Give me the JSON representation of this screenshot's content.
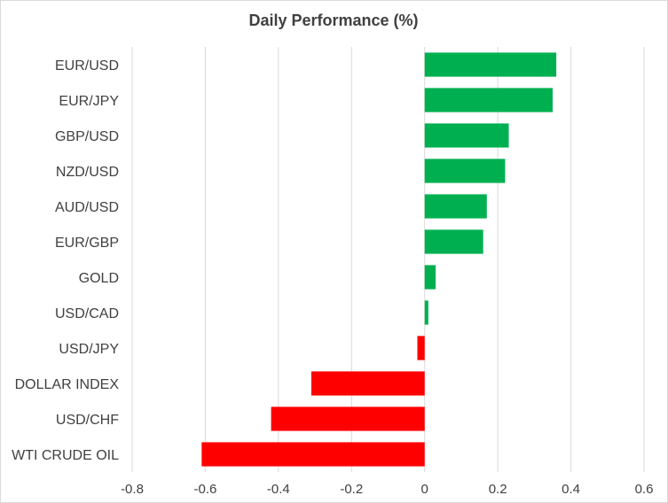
{
  "chart_data": {
    "type": "bar",
    "orientation": "horizontal",
    "title": "Daily Performance  (%)",
    "xlabel": "",
    "ylabel": "",
    "xlim": [
      -0.8,
      0.6
    ],
    "x_ticks": [
      -0.8,
      -0.6,
      -0.4,
      -0.2,
      0,
      0.2,
      0.4,
      0.6
    ],
    "x_tick_labels": [
      "-0.8",
      "-0.6",
      "-0.4",
      "-0.2",
      "0",
      "0.2",
      "0.4",
      "0.6"
    ],
    "grid": "vertical",
    "legend": "none",
    "categories": [
      "EUR/USD",
      "EUR/JPY",
      "GBP/USD",
      "NZD/USD",
      "AUD/USD",
      "EUR/GBP",
      "GOLD",
      "USD/CAD",
      "USD/JPY",
      "DOLLAR INDEX",
      "USD/CHF",
      "WTI CRUDE OIL"
    ],
    "values": [
      0.36,
      0.35,
      0.23,
      0.22,
      0.17,
      0.16,
      0.03,
      0.01,
      -0.02,
      -0.31,
      -0.42,
      -0.61
    ],
    "colors": {
      "positive": "#00b050",
      "negative": "#ff0000",
      "grid": "#d9d9d9",
      "text": "#404040"
    }
  }
}
